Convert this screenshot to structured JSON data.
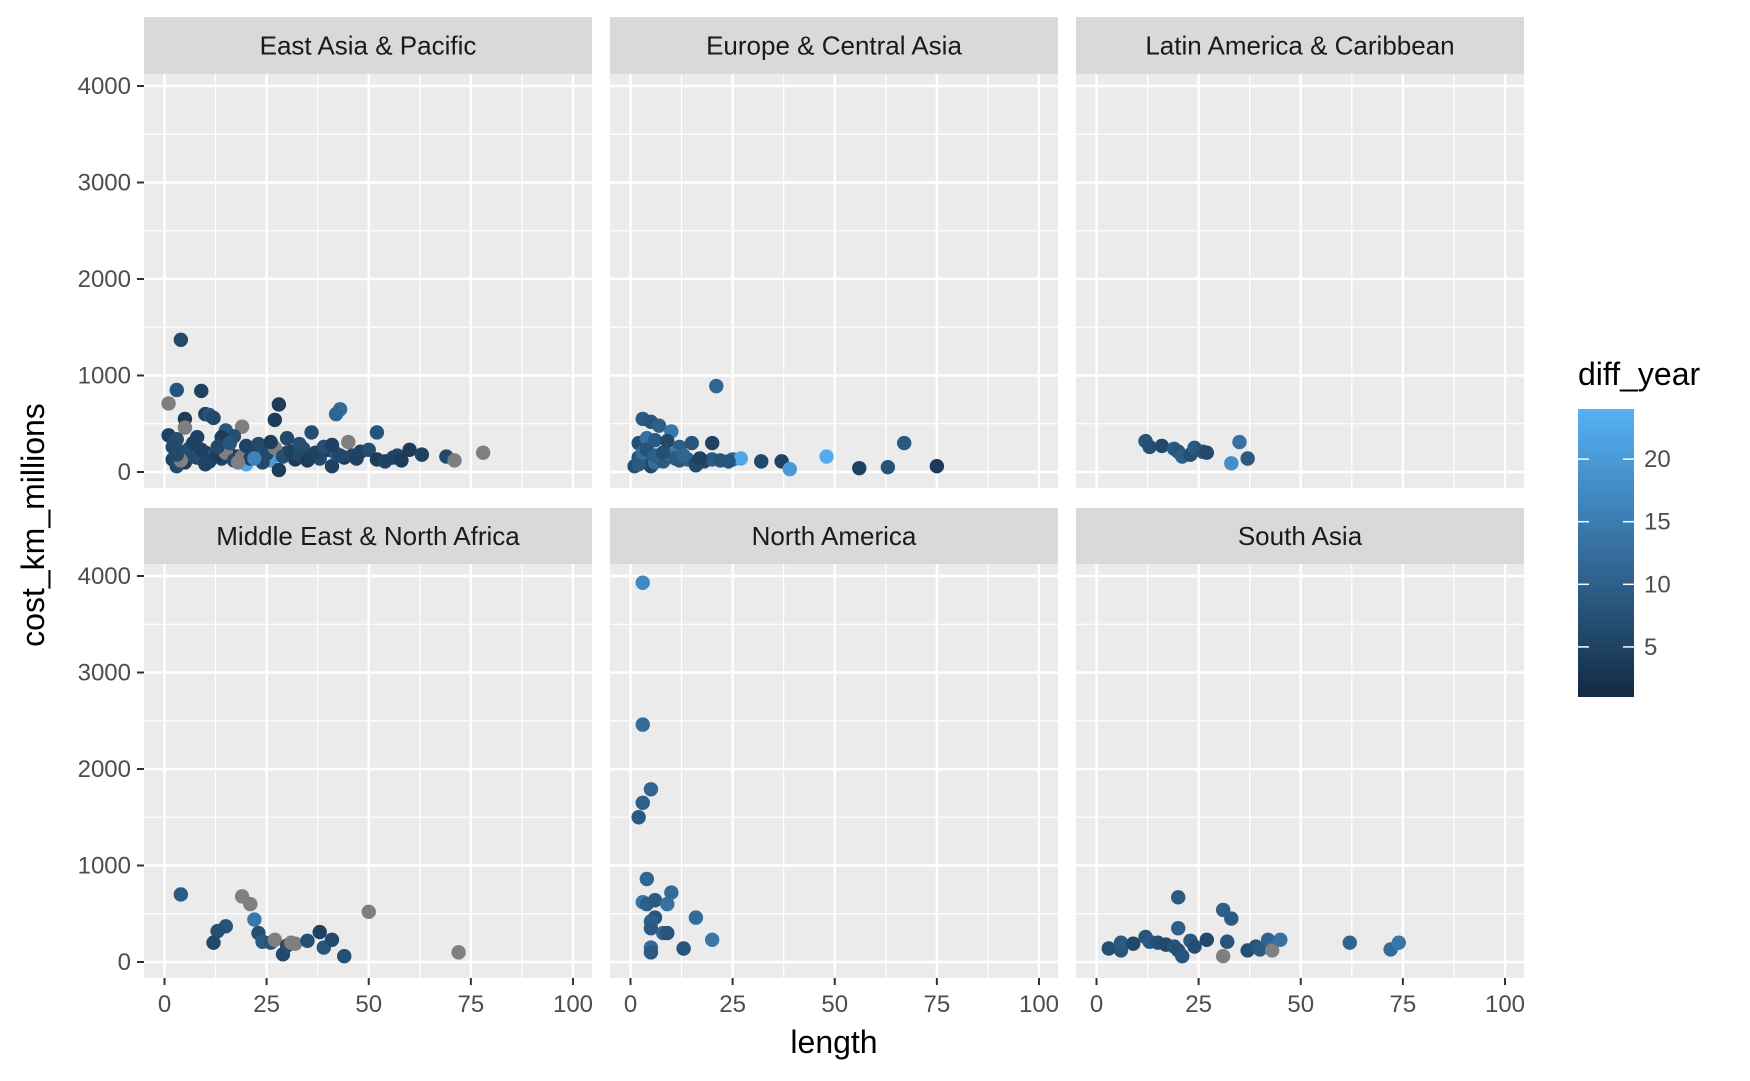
{
  "chart_data": {
    "type": "scatter",
    "facet_by": "region",
    "xlabel": "length",
    "ylabel": "cost_km_millions",
    "xlim": [
      0,
      100
    ],
    "ylim": [
      0,
      4000
    ],
    "x_ticks": [
      0,
      25,
      50,
      75,
      100
    ],
    "y_ticks": [
      0,
      1000,
      2000,
      3000,
      4000
    ],
    "grid": true,
    "legend": {
      "title": "diff_year",
      "type": "colorbar",
      "placement": "right",
      "range": [
        1,
        24
      ],
      "ticks": [
        5,
        10,
        15,
        20
      ],
      "low_color": "#132B43",
      "high_color": "#56B1F7",
      "na_color": "#7f7f7f"
    },
    "colors": {
      "panel_bg": "#EBEBEB",
      "strip_bg": "#D9D9D9",
      "grid": "#FFFFFF"
    },
    "facets": [
      {
        "name": "East Asia & Pacific",
        "points": [
          [
            4,
            1370,
            6
          ],
          [
            3,
            850,
            8
          ],
          [
            9,
            840,
            5
          ],
          [
            1,
            710,
            null
          ],
          [
            28,
            700,
            4
          ],
          [
            43,
            650,
            12
          ],
          [
            42,
            600,
            11
          ],
          [
            10,
            600,
            5
          ],
          [
            11,
            590,
            8
          ],
          [
            5,
            550,
            4
          ],
          [
            12,
            560,
            6
          ],
          [
            27,
            540,
            4
          ],
          [
            36,
            410,
            7
          ],
          [
            52,
            410,
            8
          ],
          [
            19,
            470,
            null
          ],
          [
            5,
            460,
            null
          ],
          [
            1,
            380,
            5
          ],
          [
            3,
            340,
            7
          ],
          [
            8,
            360,
            5
          ],
          [
            15,
            430,
            9
          ],
          [
            17,
            370,
            7
          ],
          [
            14,
            360,
            4
          ],
          [
            30,
            350,
            6
          ],
          [
            45,
            310,
            null
          ],
          [
            2,
            260,
            6
          ],
          [
            4,
            210,
            7
          ],
          [
            6,
            180,
            5
          ],
          [
            8,
            150,
            4
          ],
          [
            10,
            200,
            6
          ],
          [
            12,
            170,
            8
          ],
          [
            14,
            140,
            5
          ],
          [
            16,
            190,
            7
          ],
          [
            18,
            160,
            4
          ],
          [
            20,
            80,
            22
          ],
          [
            22,
            210,
            5
          ],
          [
            24,
            180,
            8
          ],
          [
            26,
            120,
            20
          ],
          [
            28,
            20,
            4
          ],
          [
            30,
            200,
            6
          ],
          [
            32,
            130,
            4
          ],
          [
            34,
            240,
            7
          ],
          [
            36,
            170,
            5
          ],
          [
            38,
            140,
            6
          ],
          [
            40,
            230,
            4
          ],
          [
            41,
            60,
            5
          ],
          [
            42,
            190,
            8
          ],
          [
            44,
            150,
            4
          ],
          [
            46,
            170,
            6
          ],
          [
            48,
            210,
            5
          ],
          [
            50,
            230,
            7
          ],
          [
            52,
            130,
            4
          ],
          [
            54,
            110,
            5
          ],
          [
            57,
            170,
            6
          ],
          [
            60,
            230,
            4
          ],
          [
            63,
            180,
            5
          ],
          [
            69,
            160,
            6
          ],
          [
            71,
            120,
            null
          ],
          [
            78,
            200,
            null
          ],
          [
            2,
            130,
            5
          ],
          [
            5,
            100,
            4
          ],
          [
            7,
            160,
            6
          ],
          [
            9,
            140,
            7
          ],
          [
            11,
            110,
            5
          ],
          [
            13,
            180,
            4
          ],
          [
            15,
            200,
            null
          ],
          [
            17,
            120,
            6
          ],
          [
            19,
            160,
            null
          ],
          [
            21,
            140,
            5
          ],
          [
            25,
            190,
            6
          ],
          [
            27,
            250,
            null
          ],
          [
            29,
            160,
            7
          ],
          [
            31,
            210,
            5
          ],
          [
            33,
            180,
            6
          ],
          [
            35,
            120,
            4
          ],
          [
            37,
            200,
            5
          ],
          [
            39,
            260,
            7
          ],
          [
            43,
            170,
            6
          ],
          [
            47,
            140,
            5
          ],
          [
            3,
            60,
            6
          ],
          [
            6,
            240,
            7
          ],
          [
            9,
            230,
            5
          ],
          [
            13,
            260,
            6
          ],
          [
            16,
            300,
            8
          ],
          [
            20,
            270,
            5
          ],
          [
            23,
            290,
            6
          ],
          [
            26,
            310,
            4
          ],
          [
            33,
            290,
            7
          ],
          [
            4,
            120,
            null
          ],
          [
            18,
            100,
            null
          ],
          [
            10,
            80,
            5
          ],
          [
            24,
            100,
            6
          ],
          [
            56,
            150,
            5
          ],
          [
            58,
            120,
            4
          ],
          [
            22,
            140,
            16
          ],
          [
            41,
            280,
            5
          ],
          [
            3,
            180,
            6
          ],
          [
            7,
            300,
            5
          ]
        ]
      },
      {
        "name": "Europe & Central Asia",
        "points": [
          [
            21,
            890,
            11
          ],
          [
            3,
            550,
            9
          ],
          [
            5,
            520,
            8
          ],
          [
            7,
            480,
            10
          ],
          [
            10,
            420,
            14
          ],
          [
            2,
            300,
            7
          ],
          [
            4,
            350,
            13
          ],
          [
            6,
            330,
            9
          ],
          [
            9,
            320,
            6
          ],
          [
            12,
            260,
            10
          ],
          [
            15,
            300,
            8
          ],
          [
            20,
            300,
            5
          ],
          [
            67,
            300,
            9
          ],
          [
            2,
            150,
            8
          ],
          [
            3,
            120,
            11
          ],
          [
            4,
            100,
            7
          ],
          [
            5,
            60,
            6
          ],
          [
            6,
            100,
            12
          ],
          [
            8,
            110,
            9
          ],
          [
            10,
            180,
            14
          ],
          [
            12,
            120,
            8
          ],
          [
            14,
            130,
            10
          ],
          [
            16,
            90,
            7
          ],
          [
            18,
            110,
            6
          ],
          [
            20,
            130,
            9
          ],
          [
            22,
            120,
            8
          ],
          [
            25,
            130,
            11
          ],
          [
            27,
            140,
            22
          ],
          [
            32,
            110,
            6
          ],
          [
            37,
            110,
            5
          ],
          [
            39,
            30,
            20
          ],
          [
            48,
            160,
            23
          ],
          [
            56,
            40,
            5
          ],
          [
            63,
            50,
            8
          ],
          [
            75,
            60,
            4
          ],
          [
            1,
            60,
            7
          ],
          [
            2,
            80,
            9
          ],
          [
            3,
            200,
            12
          ],
          [
            4,
            230,
            8
          ],
          [
            6,
            170,
            10
          ],
          [
            8,
            200,
            7
          ],
          [
            11,
            140,
            9
          ],
          [
            13,
            170,
            11
          ],
          [
            16,
            70,
            6
          ],
          [
            24,
            110,
            8
          ],
          [
            17,
            140,
            5
          ]
        ]
      },
      {
        "name": "Latin America & Caribbean",
        "points": [
          [
            12,
            320,
            8
          ],
          [
            13,
            260,
            7
          ],
          [
            16,
            270,
            6
          ],
          [
            19,
            240,
            9
          ],
          [
            20,
            210,
            8
          ],
          [
            21,
            160,
            10
          ],
          [
            23,
            180,
            7
          ],
          [
            24,
            250,
            9
          ],
          [
            26,
            210,
            8
          ],
          [
            27,
            200,
            6
          ],
          [
            33,
            90,
            18
          ],
          [
            35,
            310,
            13
          ],
          [
            37,
            140,
            9
          ]
        ]
      },
      {
        "name": "Middle East & North Africa",
        "points": [
          [
            4,
            700,
            9
          ],
          [
            19,
            680,
            null
          ],
          [
            21,
            600,
            null
          ],
          [
            22,
            440,
            14
          ],
          [
            15,
            370,
            8
          ],
          [
            13,
            320,
            7
          ],
          [
            12,
            200,
            6
          ],
          [
            23,
            300,
            7
          ],
          [
            24,
            210,
            9
          ],
          [
            26,
            200,
            8
          ],
          [
            27,
            230,
            null
          ],
          [
            29,
            80,
            6
          ],
          [
            30,
            170,
            7
          ],
          [
            31,
            200,
            null
          ],
          [
            32,
            190,
            null
          ],
          [
            35,
            220,
            7
          ],
          [
            38,
            310,
            5
          ],
          [
            39,
            150,
            8
          ],
          [
            41,
            230,
            6
          ],
          [
            44,
            60,
            7
          ],
          [
            50,
            520,
            null
          ],
          [
            72,
            100,
            null
          ]
        ]
      },
      {
        "name": "North America",
        "points": [
          [
            3,
            3930,
            17
          ],
          [
            3,
            2460,
            12
          ],
          [
            5,
            1790,
            11
          ],
          [
            3,
            1650,
            10
          ],
          [
            2,
            1500,
            9
          ],
          [
            4,
            860,
            11
          ],
          [
            10,
            720,
            12
          ],
          [
            3,
            620,
            14
          ],
          [
            4,
            600,
            10
          ],
          [
            6,
            640,
            9
          ],
          [
            9,
            600,
            13
          ],
          [
            6,
            460,
            8
          ],
          [
            5,
            420,
            10
          ],
          [
            16,
            460,
            12
          ],
          [
            5,
            350,
            9
          ],
          [
            8,
            300,
            11
          ],
          [
            9,
            300,
            8
          ],
          [
            20,
            230,
            14
          ],
          [
            5,
            150,
            12
          ],
          [
            5,
            100,
            9
          ],
          [
            13,
            140,
            8
          ]
        ]
      },
      {
        "name": "South Asia",
        "points": [
          [
            3,
            140,
            7
          ],
          [
            6,
            120,
            8
          ],
          [
            6,
            200,
            9
          ],
          [
            9,
            190,
            6
          ],
          [
            12,
            260,
            8
          ],
          [
            13,
            210,
            9
          ],
          [
            15,
            200,
            7
          ],
          [
            17,
            180,
            6
          ],
          [
            19,
            160,
            8
          ],
          [
            20,
            670,
            9
          ],
          [
            20,
            350,
            10
          ],
          [
            20,
            120,
            7
          ],
          [
            21,
            60,
            8
          ],
          [
            23,
            220,
            9
          ],
          [
            24,
            160,
            7
          ],
          [
            27,
            230,
            6
          ],
          [
            31,
            540,
            10
          ],
          [
            31,
            60,
            null
          ],
          [
            32,
            210,
            8
          ],
          [
            33,
            450,
            9
          ],
          [
            37,
            120,
            7
          ],
          [
            39,
            160,
            8
          ],
          [
            40,
            130,
            9
          ],
          [
            42,
            230,
            11
          ],
          [
            43,
            120,
            null
          ],
          [
            45,
            230,
            13
          ],
          [
            62,
            200,
            11
          ],
          [
            72,
            130,
            12
          ],
          [
            74,
            200,
            14
          ]
        ]
      }
    ]
  }
}
